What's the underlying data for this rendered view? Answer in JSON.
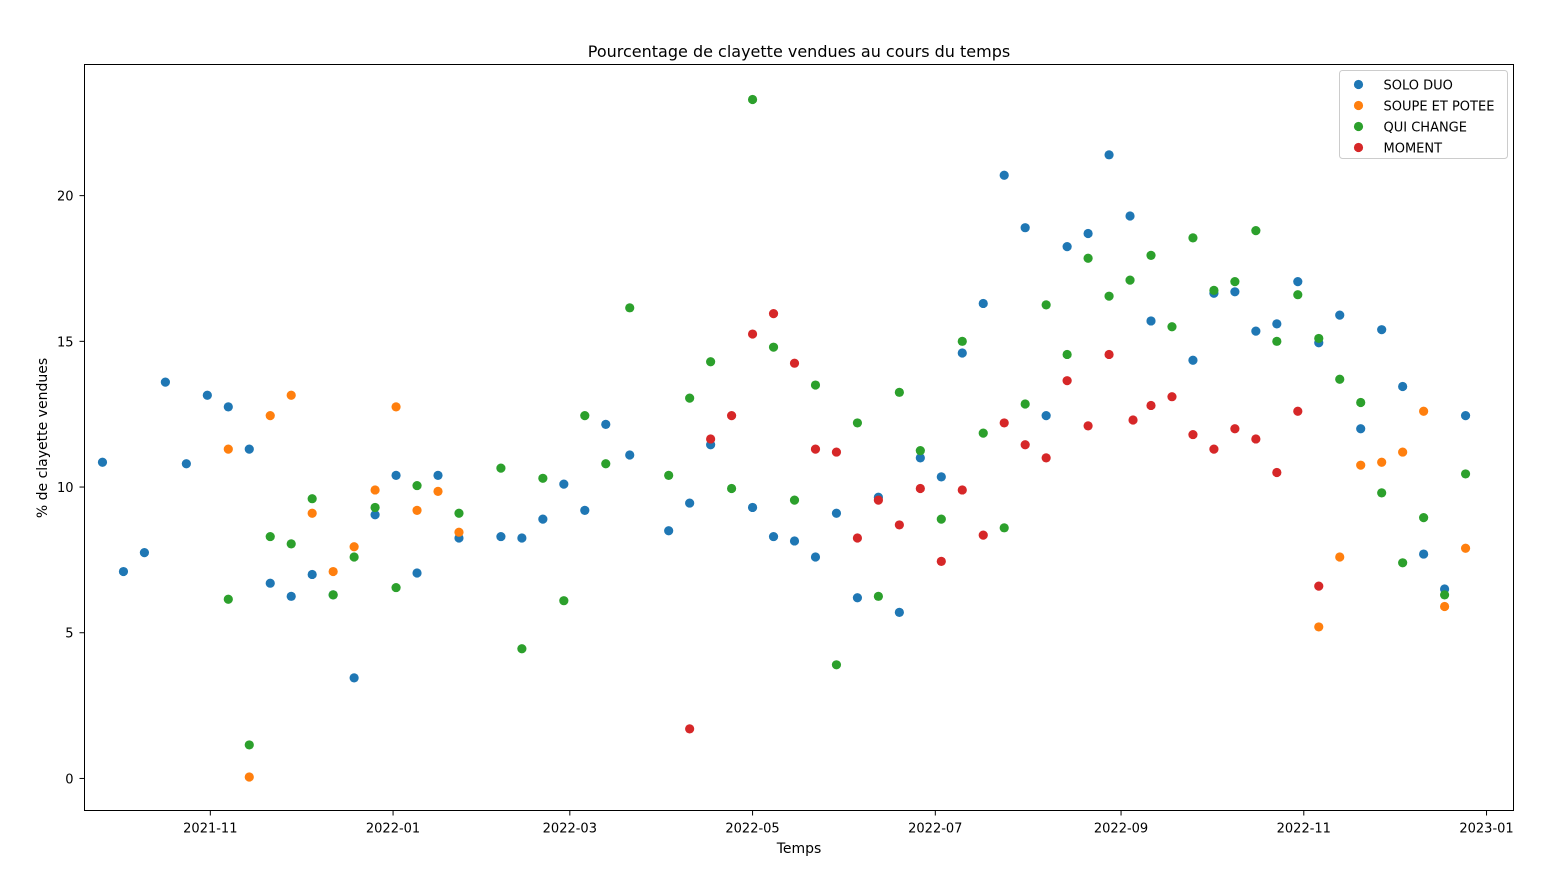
{
  "chart_data": {
    "type": "scatter",
    "title": "Pourcentage de clayette vendues au cours du temps",
    "xlabel": "Temps",
    "ylabel": "% de clayette vendues",
    "x_ticks": [
      "2021-11",
      "2022-01",
      "2022-03",
      "2022-05",
      "2022-07",
      "2022-09",
      "2022-11",
      "2023-01"
    ],
    "y_ticks": [
      0,
      5,
      10,
      15,
      20
    ],
    "ylim": [
      -1.1,
      24.5
    ],
    "xlim": [
      "2021-09-20",
      "2023-01-10"
    ],
    "grid": false,
    "legend_position": "top-right",
    "series": [
      {
        "name": "SOLO DUO",
        "color": "#1f77b4",
        "points": [
          [
            "2021-09-26",
            10.85
          ],
          [
            "2021-10-03",
            7.1
          ],
          [
            "2021-10-10",
            7.75
          ],
          [
            "2021-10-17",
            13.6
          ],
          [
            "2021-10-24",
            10.8
          ],
          [
            "2021-10-31",
            13.15
          ],
          [
            "2021-11-07",
            12.75
          ],
          [
            "2021-11-14",
            11.3
          ],
          [
            "2021-11-21",
            6.7
          ],
          [
            "2021-11-28",
            6.25
          ],
          [
            "2021-12-05",
            7.0
          ],
          [
            "2021-12-12",
            6.3
          ],
          [
            "2021-12-19",
            3.45
          ],
          [
            "2021-12-26",
            9.05
          ],
          [
            "2022-01-02",
            10.4
          ],
          [
            "2022-01-09",
            7.05
          ],
          [
            "2022-01-16",
            10.4
          ],
          [
            "2022-01-23",
            8.25
          ],
          [
            "2022-02-06",
            8.3
          ],
          [
            "2022-02-13",
            8.25
          ],
          [
            "2022-02-20",
            8.9
          ],
          [
            "2022-02-27",
            10.1
          ],
          [
            "2022-03-06",
            9.2
          ],
          [
            "2022-03-13",
            12.15
          ],
          [
            "2022-03-21",
            11.1
          ],
          [
            "2022-04-03",
            8.5
          ],
          [
            "2022-04-10",
            9.45
          ],
          [
            "2022-04-17",
            11.45
          ],
          [
            "2022-05-01",
            9.3
          ],
          [
            "2022-05-08",
            8.3
          ],
          [
            "2022-05-15",
            8.15
          ],
          [
            "2022-05-22",
            7.6
          ],
          [
            "2022-05-29",
            9.1
          ],
          [
            "2022-06-05",
            6.2
          ],
          [
            "2022-06-12",
            9.65
          ],
          [
            "2022-06-19",
            5.7
          ],
          [
            "2022-06-26",
            11.0
          ],
          [
            "2022-07-03",
            10.35
          ],
          [
            "2022-07-10",
            14.6
          ],
          [
            "2022-07-17",
            16.3
          ],
          [
            "2022-07-24",
            20.7
          ],
          [
            "2022-07-31",
            18.9
          ],
          [
            "2022-08-07",
            12.45
          ],
          [
            "2022-08-14",
            18.25
          ],
          [
            "2022-08-21",
            18.7
          ],
          [
            "2022-08-28",
            21.4
          ],
          [
            "2022-09-04",
            19.3
          ],
          [
            "2022-09-11",
            15.7
          ],
          [
            "2022-09-25",
            14.35
          ],
          [
            "2022-10-02",
            16.65
          ],
          [
            "2022-10-09",
            16.7
          ],
          [
            "2022-10-16",
            15.35
          ],
          [
            "2022-10-23",
            15.6
          ],
          [
            "2022-10-30",
            17.05
          ],
          [
            "2022-11-06",
            14.95
          ],
          [
            "2022-11-13",
            15.9
          ],
          [
            "2022-11-20",
            12.0
          ],
          [
            "2022-11-27",
            15.4
          ],
          [
            "2022-12-04",
            13.45
          ],
          [
            "2022-12-11",
            7.7
          ],
          [
            "2022-12-18",
            6.5
          ],
          [
            "2022-12-25",
            12.45
          ]
        ]
      },
      {
        "name": "SOUPE ET POTEE",
        "color": "#ff7f0e",
        "points": [
          [
            "2021-11-07",
            11.3
          ],
          [
            "2021-11-14",
            0.05
          ],
          [
            "2021-11-21",
            12.45
          ],
          [
            "2021-11-28",
            13.15
          ],
          [
            "2021-12-05",
            9.1
          ],
          [
            "2021-12-12",
            7.1
          ],
          [
            "2021-12-19",
            7.95
          ],
          [
            "2021-12-26",
            9.9
          ],
          [
            "2022-01-02",
            12.75
          ],
          [
            "2022-01-09",
            9.2
          ],
          [
            "2022-01-16",
            9.85
          ],
          [
            "2022-01-23",
            8.45
          ],
          [
            "2022-11-06",
            5.2
          ],
          [
            "2022-11-13",
            7.6
          ],
          [
            "2022-11-20",
            10.75
          ],
          [
            "2022-11-27",
            10.85
          ],
          [
            "2022-12-04",
            11.2
          ],
          [
            "2022-12-11",
            12.6
          ],
          [
            "2022-12-18",
            5.9
          ],
          [
            "2022-12-25",
            7.9
          ]
        ]
      },
      {
        "name": "QUI CHANGE",
        "color": "#2ca02c",
        "points": [
          [
            "2021-11-07",
            6.15
          ],
          [
            "2021-11-14",
            1.15
          ],
          [
            "2021-11-21",
            8.3
          ],
          [
            "2021-11-28",
            8.05
          ],
          [
            "2021-12-05",
            9.6
          ],
          [
            "2021-12-12",
            6.3
          ],
          [
            "2021-12-19",
            7.6
          ],
          [
            "2021-12-26",
            9.3
          ],
          [
            "2022-01-02",
            6.55
          ],
          [
            "2022-01-09",
            10.05
          ],
          [
            "2022-01-23",
            9.1
          ],
          [
            "2022-02-06",
            10.65
          ],
          [
            "2022-02-13",
            4.45
          ],
          [
            "2022-02-20",
            10.3
          ],
          [
            "2022-02-27",
            6.1
          ],
          [
            "2022-03-06",
            12.45
          ],
          [
            "2022-03-13",
            10.8
          ],
          [
            "2022-03-21",
            16.15
          ],
          [
            "2022-04-03",
            10.4
          ],
          [
            "2022-04-10",
            13.05
          ],
          [
            "2022-04-17",
            14.3
          ],
          [
            "2022-04-24",
            9.95
          ],
          [
            "2022-05-01",
            23.3
          ],
          [
            "2022-05-08",
            14.8
          ],
          [
            "2022-05-15",
            9.55
          ],
          [
            "2022-05-22",
            13.5
          ],
          [
            "2022-05-29",
            3.9
          ],
          [
            "2022-06-05",
            12.2
          ],
          [
            "2022-06-12",
            6.25
          ],
          [
            "2022-06-19",
            13.25
          ],
          [
            "2022-06-26",
            11.25
          ],
          [
            "2022-07-03",
            8.9
          ],
          [
            "2022-07-10",
            15.0
          ],
          [
            "2022-07-17",
            11.85
          ],
          [
            "2022-07-24",
            8.6
          ],
          [
            "2022-07-31",
            12.85
          ],
          [
            "2022-08-07",
            16.25
          ],
          [
            "2022-08-14",
            14.55
          ],
          [
            "2022-08-21",
            17.85
          ],
          [
            "2022-08-28",
            16.55
          ],
          [
            "2022-09-04",
            17.1
          ],
          [
            "2022-09-11",
            17.95
          ],
          [
            "2022-09-18",
            15.5
          ],
          [
            "2022-09-25",
            18.55
          ],
          [
            "2022-10-02",
            16.75
          ],
          [
            "2022-10-09",
            17.05
          ],
          [
            "2022-10-16",
            18.8
          ],
          [
            "2022-10-23",
            15.0
          ],
          [
            "2022-10-30",
            16.6
          ],
          [
            "2022-11-06",
            15.1
          ],
          [
            "2022-11-13",
            13.7
          ],
          [
            "2022-11-20",
            12.9
          ],
          [
            "2022-11-27",
            9.8
          ],
          [
            "2022-12-04",
            7.4
          ],
          [
            "2022-12-11",
            8.95
          ],
          [
            "2022-12-18",
            6.3
          ],
          [
            "2022-12-25",
            10.45
          ]
        ]
      },
      {
        "name": "MOMENT",
        "color": "#d62728",
        "points": [
          [
            "2022-04-10",
            1.7
          ],
          [
            "2022-04-17",
            11.65
          ],
          [
            "2022-04-24",
            12.45
          ],
          [
            "2022-05-01",
            15.25
          ],
          [
            "2022-05-08",
            15.95
          ],
          [
            "2022-05-15",
            14.25
          ],
          [
            "2022-05-22",
            11.3
          ],
          [
            "2022-05-29",
            11.2
          ],
          [
            "2022-06-05",
            8.25
          ],
          [
            "2022-06-12",
            9.55
          ],
          [
            "2022-06-19",
            8.7
          ],
          [
            "2022-06-26",
            9.95
          ],
          [
            "2022-07-03",
            7.45
          ],
          [
            "2022-07-10",
            9.9
          ],
          [
            "2022-07-17",
            8.35
          ],
          [
            "2022-07-24",
            12.2
          ],
          [
            "2022-07-31",
            11.45
          ],
          [
            "2022-08-07",
            11.0
          ],
          [
            "2022-08-14",
            13.65
          ],
          [
            "2022-08-21",
            12.1
          ],
          [
            "2022-08-28",
            14.55
          ],
          [
            "2022-09-05",
            12.3
          ],
          [
            "2022-09-11",
            12.8
          ],
          [
            "2022-09-18",
            13.1
          ],
          [
            "2022-09-25",
            11.8
          ],
          [
            "2022-10-02",
            11.3
          ],
          [
            "2022-10-09",
            12.0
          ],
          [
            "2022-10-16",
            11.65
          ],
          [
            "2022-10-23",
            10.5
          ],
          [
            "2022-10-30",
            12.6
          ],
          [
            "2022-11-06",
            6.6
          ]
        ]
      }
    ]
  }
}
